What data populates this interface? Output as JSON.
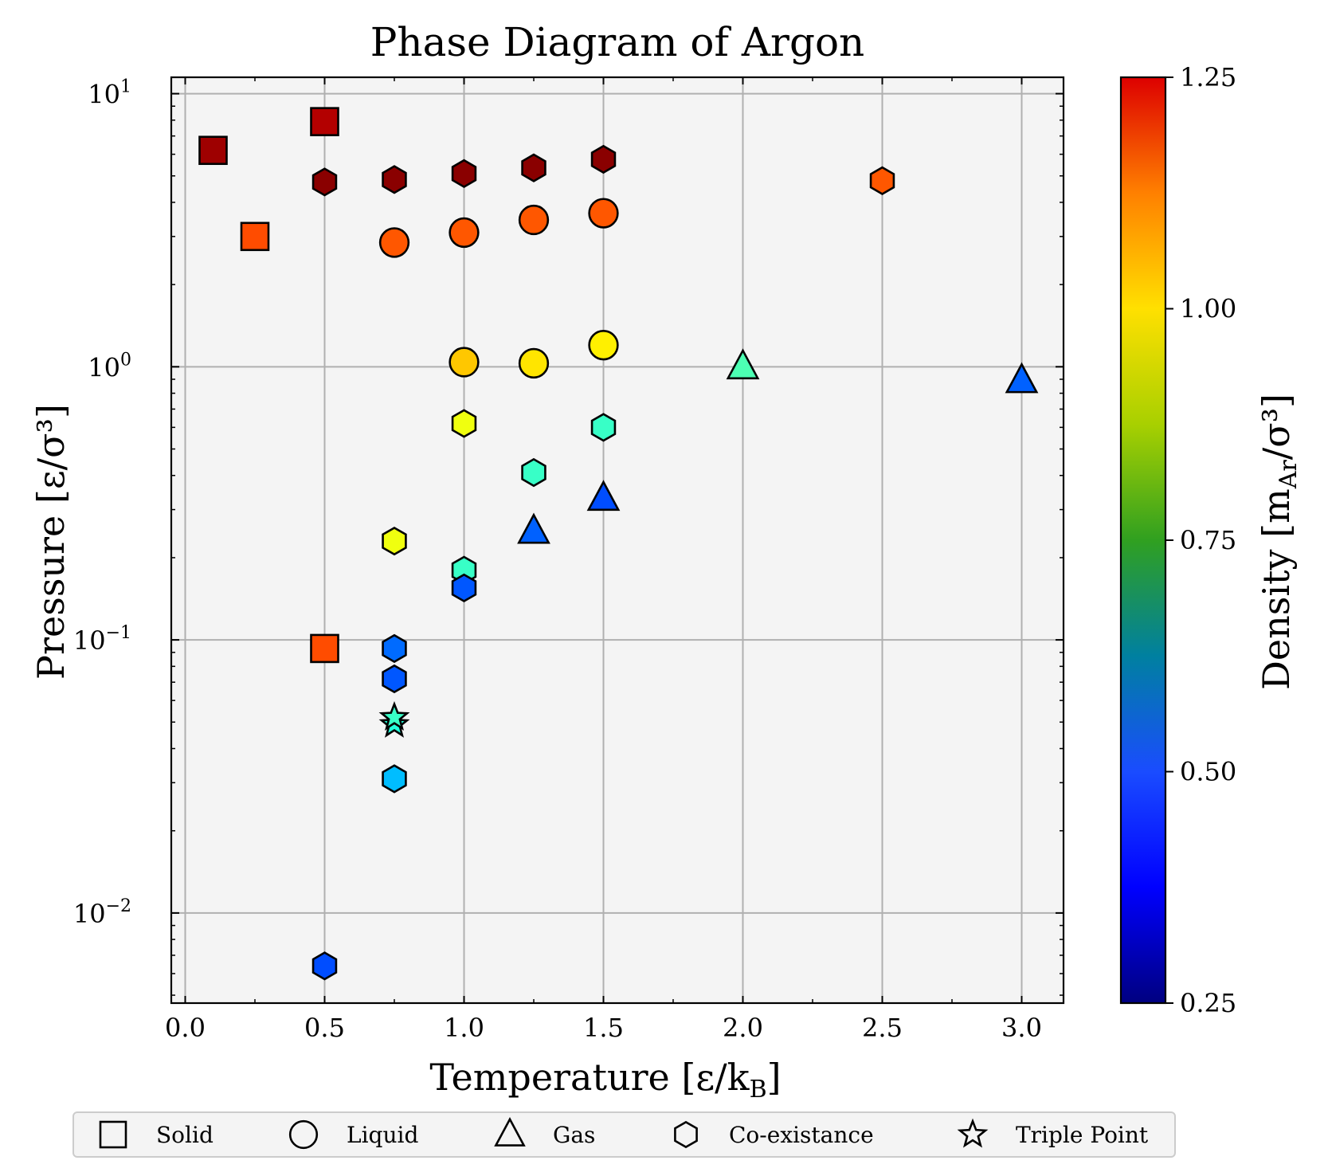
{
  "chart_data": {
    "type": "scatter",
    "title": "Phase Diagram of Argon",
    "xlabel": "Temperature [ε/k",
    "xlabel_sub": "B",
    "xlabel_end": "]",
    "ylabel": "Pressure [ε/σ³]",
    "colorbar_label": "Density [m",
    "colorbar_label_sub": "Ar",
    "colorbar_label_end": "/σ³]",
    "xlim": [
      -0.05,
      3.15
    ],
    "ylim_log10": [
      -2.33,
      1.06
    ],
    "yscale": "log",
    "grid": true,
    "x_ticks": [
      "0.0",
      "0.5",
      "1.0",
      "1.5",
      "2.0",
      "2.5",
      "3.0"
    ],
    "x_tick_values": [
      0,
      0.5,
      1.0,
      1.5,
      2.0,
      2.5,
      3.0
    ],
    "y_ticks": [
      {
        "base": "10",
        "exp": "1",
        "value": 10
      },
      {
        "base": "10",
        "exp": "0",
        "value": 1
      },
      {
        "base": "10",
        "exp": "−1",
        "value": 0.1
      },
      {
        "base": "10",
        "exp": "−2",
        "value": 0.01
      }
    ],
    "colorbar": {
      "range": [
        0.25,
        1.25
      ],
      "ticks": [
        "0.25",
        "0.50",
        "0.75",
        "1.00",
        "1.25"
      ],
      "tick_values": [
        0.25,
        0.5,
        0.75,
        1.0,
        1.25
      ],
      "colormap": "jet"
    },
    "legend": {
      "placement": "bottom",
      "entries": [
        {
          "label": "Solid",
          "marker": "square"
        },
        {
          "label": "Liquid",
          "marker": "circle"
        },
        {
          "label": "Gas",
          "marker": "triangle"
        },
        {
          "label": "Co-existance",
          "marker": "hexagon"
        },
        {
          "label": "Triple Point",
          "marker": "star"
        }
      ]
    },
    "series": [
      {
        "name": "Solid",
        "marker": "square",
        "points": [
          {
            "x": 0.1,
            "y": 6.2,
            "density": 1.22
          },
          {
            "x": 0.5,
            "y": 7.9,
            "density": 1.2
          },
          {
            "x": 0.25,
            "y": 3.0,
            "density": 1.05
          },
          {
            "x": 0.5,
            "y": 0.093,
            "density": 1.05
          }
        ]
      },
      {
        "name": "Liquid",
        "marker": "circle",
        "points": [
          {
            "x": 0.75,
            "y": 2.85,
            "density": 1.04
          },
          {
            "x": 1.0,
            "y": 3.1,
            "density": 1.04
          },
          {
            "x": 1.25,
            "y": 3.45,
            "density": 1.04
          },
          {
            "x": 1.5,
            "y": 3.65,
            "density": 1.04
          },
          {
            "x": 1.0,
            "y": 1.04,
            "density": 0.93
          },
          {
            "x": 1.25,
            "y": 1.03,
            "density": 0.9
          },
          {
            "x": 1.5,
            "y": 1.2,
            "density": 0.89
          }
        ]
      },
      {
        "name": "Gas",
        "marker": "triangle",
        "points": [
          {
            "x": 2.0,
            "y": 1.0,
            "density": 0.7
          },
          {
            "x": 3.0,
            "y": 0.89,
            "density": 0.47
          },
          {
            "x": 1.25,
            "y": 0.25,
            "density": 0.47
          },
          {
            "x": 1.5,
            "y": 0.33,
            "density": 0.45
          }
        ]
      },
      {
        "name": "Co-existance",
        "marker": "hexagon",
        "points": [
          {
            "x": 0.5,
            "y": 4.75,
            "density": 1.24
          },
          {
            "x": 0.75,
            "y": 4.85,
            "density": 1.24
          },
          {
            "x": 1.0,
            "y": 5.1,
            "density": 1.24
          },
          {
            "x": 1.25,
            "y": 5.35,
            "density": 1.24
          },
          {
            "x": 1.5,
            "y": 5.75,
            "density": 1.24
          },
          {
            "x": 2.5,
            "y": 4.8,
            "density": 1.04
          },
          {
            "x": 1.0,
            "y": 0.62,
            "density": 0.86
          },
          {
            "x": 1.5,
            "y": 0.6,
            "density": 0.68
          },
          {
            "x": 1.25,
            "y": 0.41,
            "density": 0.68
          },
          {
            "x": 0.75,
            "y": 0.23,
            "density": 0.86
          },
          {
            "x": 1.0,
            "y": 0.18,
            "density": 0.68
          },
          {
            "x": 1.0,
            "y": 0.155,
            "density": 0.46
          },
          {
            "x": 0.75,
            "y": 0.093,
            "density": 0.48
          },
          {
            "x": 0.75,
            "y": 0.072,
            "density": 0.46
          },
          {
            "x": 0.75,
            "y": 0.031,
            "density": 0.56
          },
          {
            "x": 0.5,
            "y": 0.0064,
            "density": 0.45
          }
        ]
      },
      {
        "name": "Triple Point",
        "marker": "star",
        "points": [
          {
            "x": 0.75,
            "y": 0.049,
            "density": 0.66
          },
          {
            "x": 0.75,
            "y": 0.052,
            "density": 0.68
          }
        ]
      }
    ]
  }
}
